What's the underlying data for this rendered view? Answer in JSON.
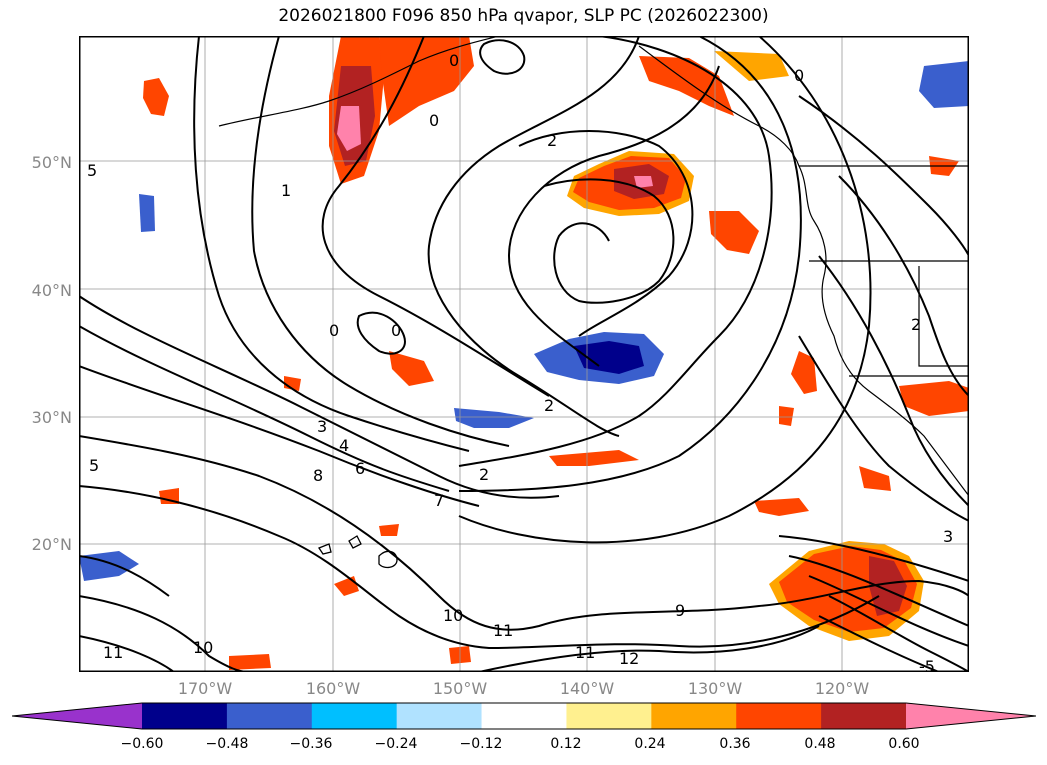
{
  "title": "2026021800 F096 850 hPa qvapor, SLP PC (2026022300)",
  "lat_labels": [
    "50°N",
    "40°N",
    "30°N",
    "20°N"
  ],
  "lon_labels": [
    "170°W",
    "160°W",
    "150°W",
    "140°W",
    "130°W",
    "120°W"
  ],
  "contour_labels": [
    "5",
    "0",
    "0",
    "1",
    "0",
    "0",
    "2",
    "2",
    "3",
    "4",
    "5",
    "6",
    "8",
    "7",
    "2",
    "10",
    "11",
    "11",
    "12",
    "9",
    "10",
    "11",
    "3",
    "2",
    "0",
    "-5"
  ],
  "colorbar": {
    "ticks": [
      "−0.60",
      "−0.48",
      "−0.36",
      "−0.24",
      "−0.12",
      "0.12",
      "0.24",
      "0.36",
      "0.48",
      "0.60"
    ],
    "colors": [
      "#9932cc",
      "#00008b",
      "#3a5fcd",
      "#00bfff",
      "#b0e2ff",
      "#ffffff",
      "#fff08f",
      "#ffa500",
      "#ff4500",
      "#b22222",
      "#ff82ab"
    ]
  },
  "colors": {
    "grid": "#999999",
    "contour": "#000000",
    "axis_label": "#888888"
  }
}
